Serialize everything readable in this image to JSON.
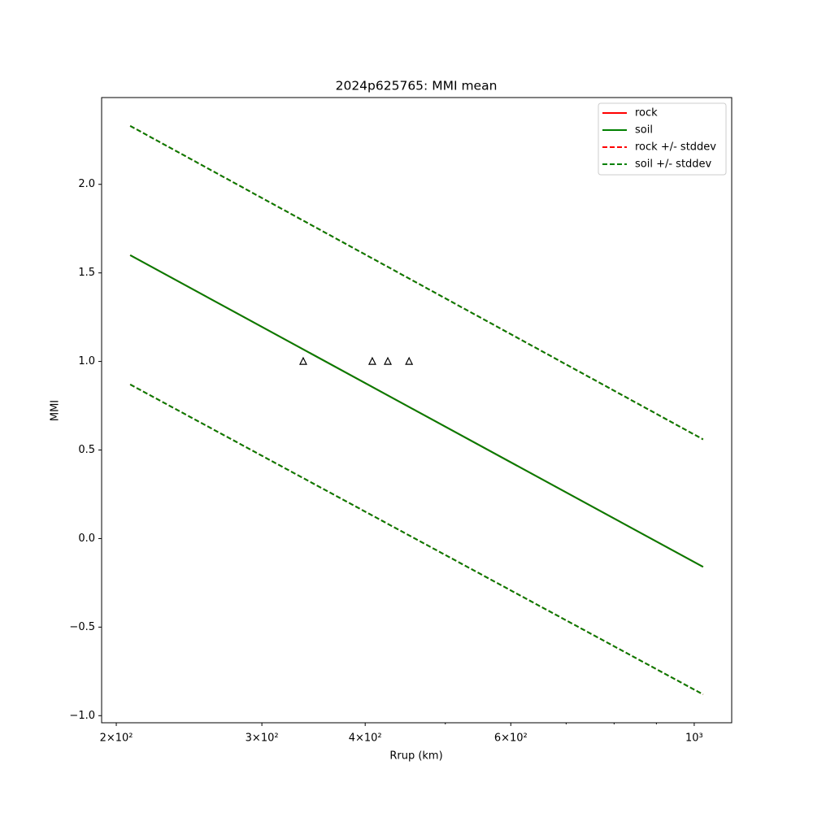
{
  "chart_data": {
    "type": "line",
    "title": "2024p625765: MMI mean",
    "xlabel": "Rrup (km)",
    "ylabel": "MMI",
    "xscale": "log",
    "xlim": [
      192.0,
      1110
    ],
    "ylim": [
      -1.04,
      2.49
    ],
    "xticks": [
      {
        "value": 200,
        "label": "2×10²"
      },
      {
        "value": 300,
        "label": "3×10²"
      },
      {
        "value": 400,
        "label": "4×10²"
      },
      {
        "value": 600,
        "label": "6×10²"
      },
      {
        "value": 1000,
        "label": "10³"
      }
    ],
    "xminor_ticks": [
      500,
      700,
      800,
      900
    ],
    "yticks": [
      {
        "value": -1.0,
        "label": "−1.0"
      },
      {
        "value": -0.5,
        "label": "−0.5"
      },
      {
        "value": 0.0,
        "label": "0.0"
      },
      {
        "value": 0.5,
        "label": "0.5"
      },
      {
        "value": 1.0,
        "label": "1.0"
      },
      {
        "value": 1.5,
        "label": "1.5"
      },
      {
        "value": 2.0,
        "label": "2.0"
      }
    ],
    "legend": "upper right",
    "x": [
      207.9,
      461.6,
      1025
    ],
    "series": [
      {
        "name": "rock",
        "color": "#ff0000",
        "linestyle": "solid",
        "values": [
          1.6,
          0.72,
          -0.16
        ]
      },
      {
        "name": "soil",
        "color": "#008000",
        "linestyle": "solid",
        "values": [
          1.6,
          0.72,
          -0.16
        ]
      },
      {
        "name": "rock +/- stddev",
        "color": "#ff0000",
        "linestyle": "dashed",
        "upper": [
          2.33,
          1.445,
          0.56
        ],
        "lower": [
          0.87,
          -0.005,
          -0.88
        ]
      },
      {
        "name": "soil +/- stddev",
        "color": "#008000",
        "linestyle": "dashed",
        "upper": [
          2.33,
          1.445,
          0.56
        ],
        "lower": [
          0.87,
          -0.005,
          -0.88
        ]
      }
    ],
    "observations": {
      "marker": "triangle",
      "color": "#000000",
      "x": [
        336.6,
        408,
        426,
        452
      ],
      "y": [
        1,
        1,
        1,
        1
      ]
    }
  }
}
